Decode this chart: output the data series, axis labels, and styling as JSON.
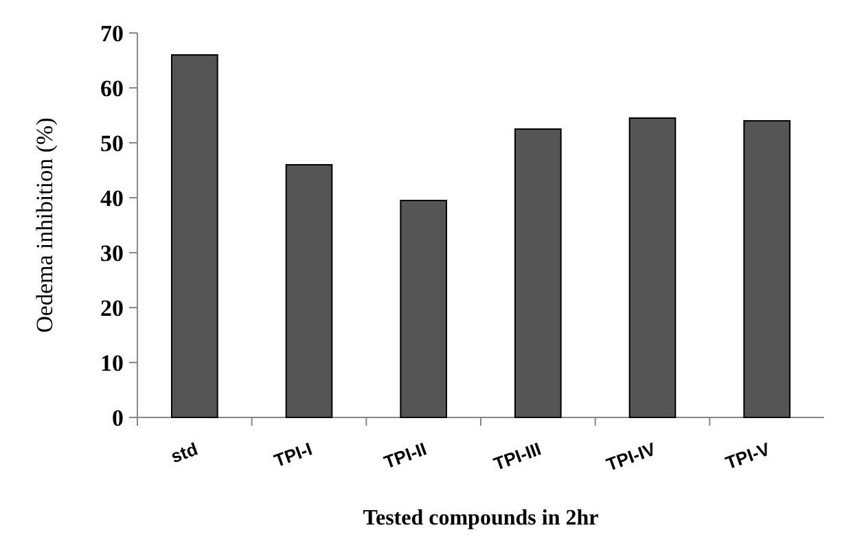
{
  "chart_data": {
    "type": "bar",
    "xlabel": "Tested compounds in 2hr",
    "ylabel": "Oedema inhibition (%)",
    "categories": [
      "std",
      "TPI-I",
      "TPI-II",
      "TPI-III",
      "TPI-IV",
      "TPI-V"
    ],
    "values": [
      66,
      46,
      39.5,
      52.5,
      54.5,
      54
    ],
    "color": "#555555",
    "ylim": [
      0,
      70
    ],
    "yticks": [
      0,
      10,
      20,
      30,
      40,
      50,
      60,
      70
    ],
    "grid": false
  }
}
